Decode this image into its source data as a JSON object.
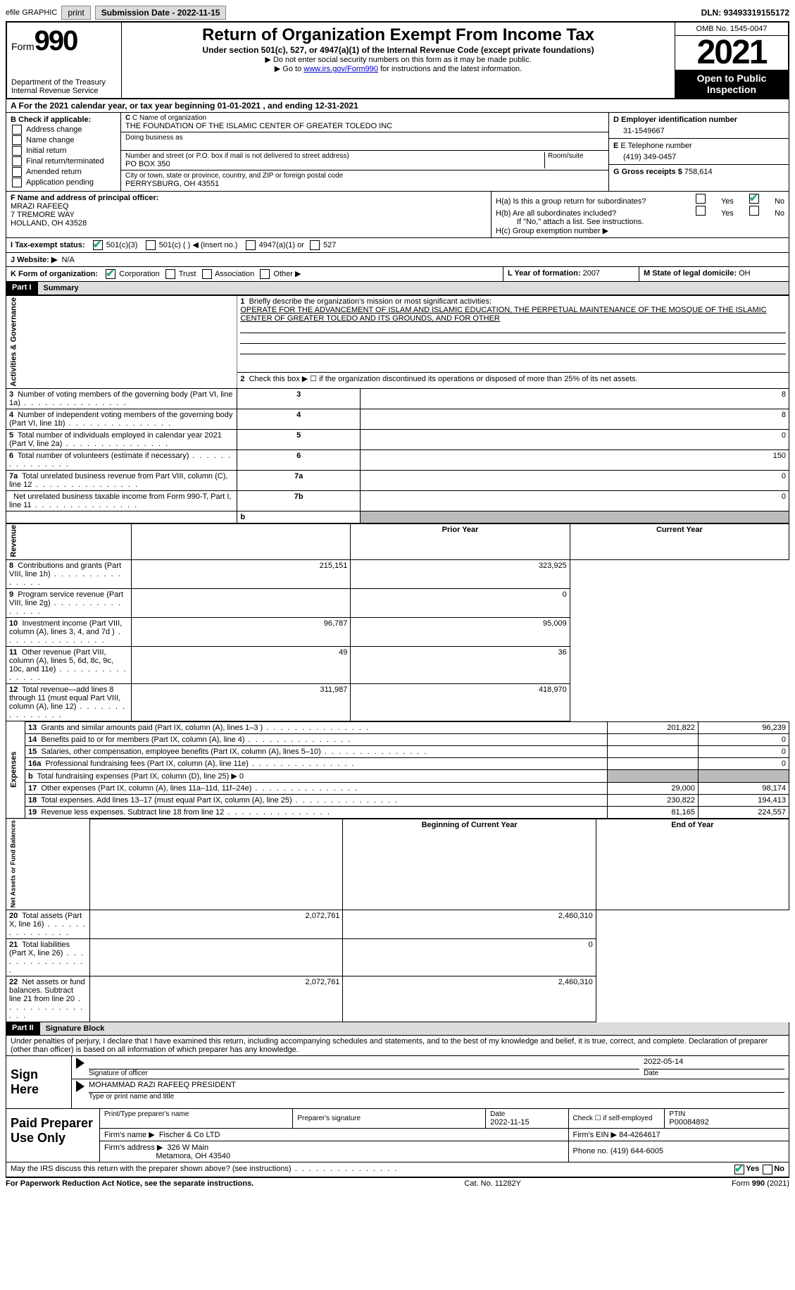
{
  "top": {
    "efile": "efile GRAPHIC",
    "print": "print",
    "sub_date_lbl": "Submission Date - 2022-11-15",
    "dln": "DLN: 93493319155172"
  },
  "header": {
    "form": "Form",
    "num": "990",
    "title": "Return of Organization Exempt From Income Tax",
    "sub": "Under section 501(c), 527, or 4947(a)(1) of the Internal Revenue Code (except private foundations)",
    "note1": "▶ Do not enter social security numbers on this form as it may be made public.",
    "note2_a": "▶ Go to ",
    "note2_link": "www.irs.gov/Form990",
    "note2_b": " for instructions and the latest information.",
    "dept": "Department of the Treasury\nInternal Revenue Service",
    "omb": "OMB No. 1545-0047",
    "year": "2021",
    "open": "Open to Public Inspection"
  },
  "A": "A For the 2021 calendar year, or tax year beginning 01-01-2021    , and ending 12-31-2021",
  "B": {
    "hdr": "B Check if applicable:",
    "items": [
      "Address change",
      "Name change",
      "Initial return",
      "Final return/terminated",
      "Amended return",
      "Application pending"
    ]
  },
  "C": {
    "name_lbl": "C Name of organization",
    "name": "THE FOUNDATION OF THE ISLAMIC CENTER OF GREATER TOLEDO INC",
    "dba_lbl": "Doing business as",
    "street_lbl": "Number and street (or P.O. box if mail is not delivered to street address)",
    "room_lbl": "Room/suite",
    "street": "PO BOX 350",
    "city_lbl": "City or town, state or province, country, and ZIP or foreign postal code",
    "city": "PERRYSBURG, OH  43551"
  },
  "D": {
    "lbl": "D Employer identification number",
    "val": "31-1549667"
  },
  "E": {
    "lbl": "E Telephone number",
    "val": "(419) 349-0457"
  },
  "G": {
    "lbl": "G Gross receipts $",
    "val": "758,614"
  },
  "F": {
    "lbl": "F  Name and address of principal officer:",
    "name": "MRAZI RAFEEQ",
    "addr1": "7 TREMORE WAY",
    "addr2": "HOLLAND, OH  43528"
  },
  "H": {
    "a": "H(a)  Is this a group return for subordinates?",
    "b": "H(b)  Are all subordinates included?",
    "b_note": "If \"No,\" attach a list. See instructions.",
    "c": "H(c)  Group exemption number ▶",
    "yes": "Yes",
    "no": "No"
  },
  "I": {
    "lbl": "I  Tax-exempt status:",
    "o1": "501(c)(3)",
    "o2": "501(c) (  ) ◀ (insert no.)",
    "o3": "4947(a)(1) or",
    "o4": "527"
  },
  "J": {
    "lbl": "J  Website: ▶",
    "val": "N/A"
  },
  "K": {
    "lbl": "K Form of organization:",
    "opts": [
      "Corporation",
      "Trust",
      "Association",
      "Other ▶"
    ]
  },
  "L": {
    "lbl": "L Year of formation:",
    "val": "2007"
  },
  "M": {
    "lbl": "M State of legal domicile:",
    "val": "OH"
  },
  "part1": {
    "hdr": "Part I",
    "title": "Summary"
  },
  "p1": {
    "l1": "Briefly describe the organization's mission or most significant activities:",
    "l1v": "OPERATE FOR THE ADVANCEMENT OF ISLAM AND ISLAMIC EDUCATION, THE PERPETUAL MAINTENANCE OF THE MOSQUE OF THE ISLAMIC CENTER OF GREATER TOLEDO AND ITS GROUNDS, AND FOR OTHER",
    "l2": "Check this box ▶ ☐ if the organization discontinued its operations or disposed of more than 25% of its net assets.",
    "rows": [
      {
        "n": "3",
        "t": "Number of voting members of the governing body (Part VI, line 1a)",
        "b": "3",
        "v": "8"
      },
      {
        "n": "4",
        "t": "Number of independent voting members of the governing body (Part VI, line 1b)",
        "b": "4",
        "v": "8"
      },
      {
        "n": "5",
        "t": "Total number of individuals employed in calendar year 2021 (Part V, line 2a)",
        "b": "5",
        "v": "0"
      },
      {
        "n": "6",
        "t": "Total number of volunteers (estimate if necessary)",
        "b": "6",
        "v": "150"
      },
      {
        "n": "7a",
        "t": "Total unrelated business revenue from Part VIII, column (C), line 12",
        "b": "7a",
        "v": "0"
      },
      {
        "n": "",
        "t": "Net unrelated business taxable income from Form 990-T, Part I, line 11",
        "b": "7b",
        "v": "0"
      }
    ],
    "side_ag": "Activities & Governance",
    "side_rev": "Revenue",
    "side_exp": "Expenses",
    "side_na": "Net Assets or Fund Balances",
    "prior": "Prior Year",
    "current": "Current Year",
    "rev": [
      {
        "n": "8",
        "t": "Contributions and grants (Part VIII, line 1h)",
        "p": "215,151",
        "c": "323,925"
      },
      {
        "n": "9",
        "t": "Program service revenue (Part VIII, line 2g)",
        "p": "",
        "c": "0"
      },
      {
        "n": "10",
        "t": "Investment income (Part VIII, column (A), lines 3, 4, and 7d )",
        "p": "96,787",
        "c": "95,009"
      },
      {
        "n": "11",
        "t": "Other revenue (Part VIII, column (A), lines 5, 6d, 8c, 9c, 10c, and 11e)",
        "p": "49",
        "c": "36"
      },
      {
        "n": "12",
        "t": "Total revenue—add lines 8 through 11 (must equal Part VIII, column (A), line 12)",
        "p": "311,987",
        "c": "418,970"
      }
    ],
    "exp": [
      {
        "n": "13",
        "t": "Grants and similar amounts paid (Part IX, column (A), lines 1–3 )",
        "p": "201,822",
        "c": "96,239"
      },
      {
        "n": "14",
        "t": "Benefits paid to or for members (Part IX, column (A), line 4)",
        "p": "",
        "c": "0"
      },
      {
        "n": "15",
        "t": "Salaries, other compensation, employee benefits (Part IX, column (A), lines 5–10)",
        "p": "",
        "c": "0"
      },
      {
        "n": "16a",
        "t": "Professional fundraising fees (Part IX, column (A), line 11e)",
        "p": "",
        "c": "0"
      },
      {
        "n": "b",
        "t": "Total fundraising expenses (Part IX, column (D), line 25) ▶ 0",
        "p": "SHADE",
        "c": "SHADE"
      },
      {
        "n": "17",
        "t": "Other expenses (Part IX, column (A), lines 11a–11d, 11f–24e)",
        "p": "29,000",
        "c": "98,174"
      },
      {
        "n": "18",
        "t": "Total expenses. Add lines 13–17 (must equal Part IX, column (A), line 25)",
        "p": "230,822",
        "c": "194,413"
      },
      {
        "n": "19",
        "t": "Revenue less expenses. Subtract line 18 from line 12",
        "p": "81,165",
        "c": "224,557"
      }
    ],
    "boy": "Beginning of Current Year",
    "eoy": "End of Year",
    "na": [
      {
        "n": "20",
        "t": "Total assets (Part X, line 16)",
        "p": "2,072,761",
        "c": "2,460,310"
      },
      {
        "n": "21",
        "t": "Total liabilities (Part X, line 26)",
        "p": "",
        "c": "0"
      },
      {
        "n": "22",
        "t": "Net assets or fund balances. Subtract line 21 from line 20",
        "p": "2,072,761",
        "c": "2,460,310"
      }
    ]
  },
  "part2": {
    "hdr": "Part II",
    "title": "Signature Block"
  },
  "decl": "Under penalties of perjury, I declare that I have examined this return, including accompanying schedules and statements, and to the best of my knowledge and belief, it is true, correct, and complete. Declaration of preparer (other than officer) is based on all information of which preparer has any knowledge.",
  "sign": {
    "here": "Sign Here",
    "sig_lbl": "Signature of officer",
    "date_lbl": "Date",
    "date": "2022-05-14",
    "name": "MOHAMMAD RAZI RAFEEQ  PRESIDENT",
    "name_lbl": "Type or print name and title"
  },
  "prep": {
    "hdr": "Paid Preparer Use Only",
    "pn_lbl": "Print/Type preparer's name",
    "ps_lbl": "Preparer's signature",
    "dt_lbl": "Date",
    "dt": "2022-11-15",
    "se_lbl": "Check ☐ if self-employed",
    "ptin_lbl": "PTIN",
    "ptin": "P00084892",
    "firm_lbl": "Firm's name    ▶",
    "firm": "Fischer & Co LTD",
    "ein_lbl": "Firm's EIN ▶",
    "ein": "84-4264617",
    "addr_lbl": "Firm's address ▶",
    "addr1": "326 W Main",
    "addr2": "Metamora, OH  43540",
    "ph_lbl": "Phone no.",
    "ph": "(419) 644-6005"
  },
  "may": "May the IRS discuss this return with the preparer shown above? (see instructions)",
  "footer": {
    "l": "For Paperwork Reduction Act Notice, see the separate instructions.",
    "c": "Cat. No. 11282Y",
    "r": "Form 990 (2021)"
  }
}
